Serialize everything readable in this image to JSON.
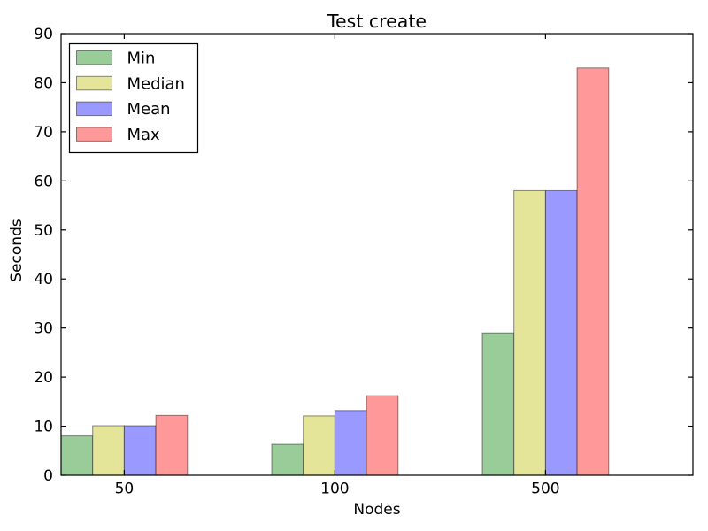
{
  "chart_data": {
    "type": "bar",
    "title": "Test create",
    "xlabel": "Nodes",
    "ylabel": "Seconds",
    "categories": [
      "50",
      "100",
      "500"
    ],
    "series": [
      {
        "name": "Min",
        "color": "#99cc99",
        "values": [
          8.0,
          6.3,
          29.0
        ]
      },
      {
        "name": "Median",
        "color": "#e5e599",
        "values": [
          10.1,
          12.1,
          58.0
        ]
      },
      {
        "name": "Mean",
        "color": "#9999ff",
        "values": [
          10.1,
          13.2,
          58.0
        ]
      },
      {
        "name": "Max",
        "color": "#ff9999",
        "values": [
          12.2,
          16.2,
          83.0
        ]
      }
    ],
    "ylim": [
      0,
      90
    ],
    "yticks": [
      0,
      10,
      20,
      30,
      40,
      50,
      60,
      70,
      80,
      90
    ],
    "legend_position": "upper left",
    "grid": false,
    "bar_edge_color": "rgba(0,0,0,0.45)",
    "axis_color": "#000000"
  }
}
